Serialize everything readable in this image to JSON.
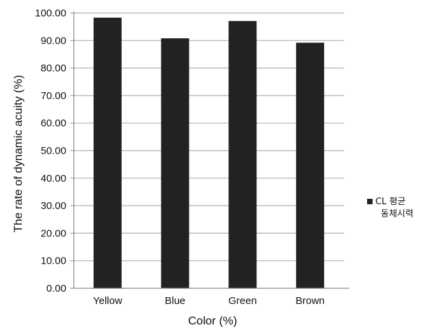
{
  "chart_data": {
    "type": "bar",
    "categories": [
      "Yellow",
      "Blue",
      "Green",
      "Brown"
    ],
    "series": [
      {
        "name": "CL 평균 동체시력",
        "values": [
          98.3,
          90.8,
          97.1,
          89.2
        ]
      }
    ],
    "xlabel": "Color (%)",
    "ylabel": "The rate of dynamic acuity (%)",
    "ylim": [
      0,
      100
    ],
    "yticks": [
      "0.00",
      "10.00",
      "20.00",
      "30.00",
      "40.00",
      "50.00",
      "60.00",
      "70.00",
      "80.00",
      "90.00",
      "100.00"
    ],
    "grid": true,
    "legend_position": "right",
    "legend_lines": [
      "CL  평균",
      "동체시력"
    ],
    "colors": {
      "bar": "#222222",
      "grid": "#b0b0b0",
      "axis": "#888888"
    }
  }
}
